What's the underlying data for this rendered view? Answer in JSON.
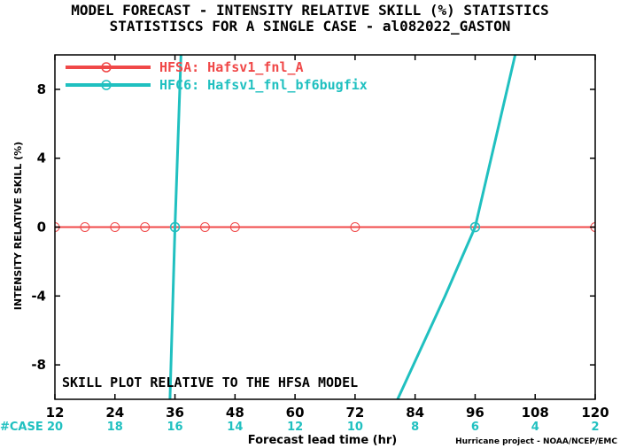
{
  "title_line1": "MODEL FORECAST - INTENSITY RELATIVE SKILL (%) STATISTICS",
  "title_line2": "STATISTISCS FOR A SINGLE CASE - al082022_GASTON",
  "colors": {
    "hfsa": "#f04848",
    "hfc6": "#20c0c0",
    "axis": "#000000"
  },
  "annotation": "SKILL PLOT RELATIVE TO THE HFSA MODEL",
  "case_prefix": "#CASE",
  "case_counts": [
    "20",
    "18",
    "16",
    "14",
    "12",
    "10",
    "8",
    "6",
    "4",
    "2"
  ],
  "footer": "Hurricane project - NOAA/NCEP/EMC",
  "chart_data": {
    "type": "line",
    "xlabel": "Forecast lead time (hr)",
    "ylabel": "INTENSITY RELATIVE SKILL (%)",
    "xlim": [
      12,
      120
    ],
    "ylim": [
      -10,
      10
    ],
    "xticks": [
      12,
      24,
      36,
      48,
      60,
      72,
      84,
      96,
      108,
      120
    ],
    "yticks": [
      -8,
      -4,
      0,
      4,
      8
    ],
    "legend_position": "top-left",
    "series": [
      {
        "name": "HFSA: Hafsv1_fnl_A",
        "color": "#f04848",
        "x": [
          12,
          18,
          24,
          30,
          36,
          42,
          48,
          72,
          96,
          120
        ],
        "y": [
          0,
          0,
          0,
          0,
          0,
          0,
          0,
          0,
          0,
          0
        ]
      },
      {
        "name": "HFC6: Hafsv1_fnl_bf6bugfix",
        "color": "#20c0c0",
        "x": [
          35,
          36,
          37.2
        ],
        "y": [
          -10,
          0,
          10
        ],
        "x2": [
          80.5,
          90,
          96,
          104
        ],
        "y2": [
          -10,
          -4,
          0,
          10
        ]
      }
    ]
  }
}
